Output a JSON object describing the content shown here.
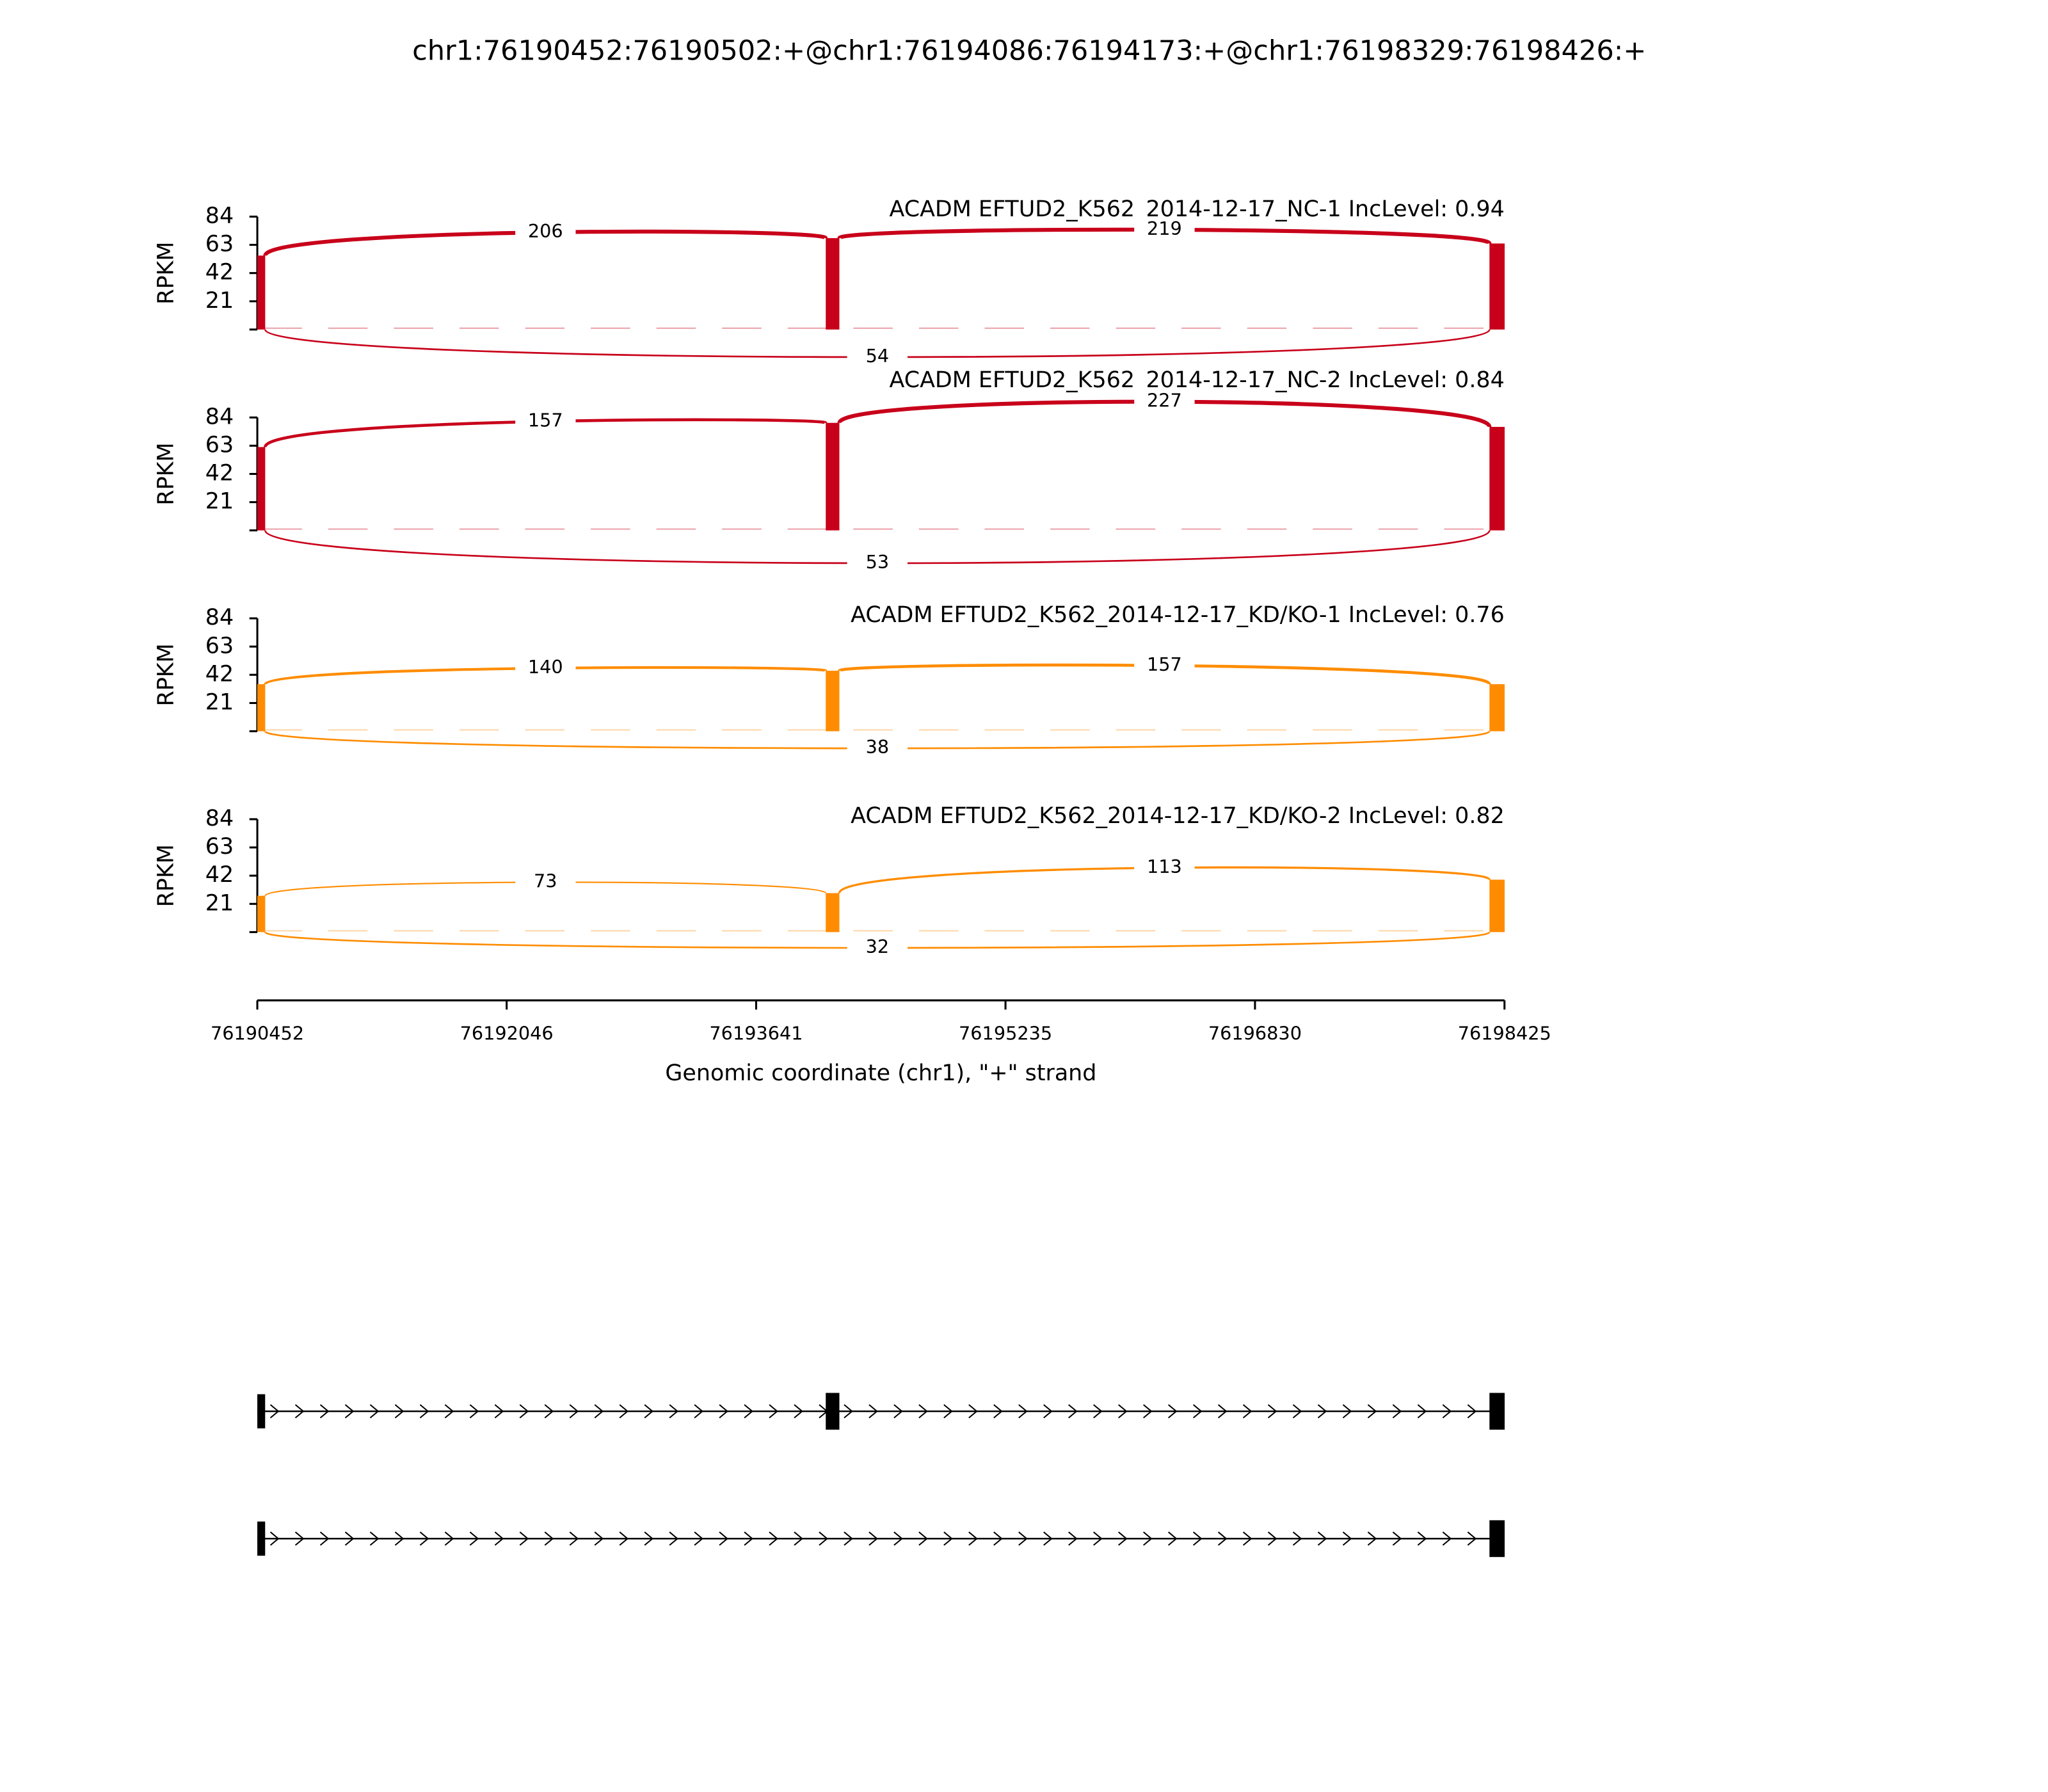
{
  "chart_data": {
    "type": "sashimi",
    "title": "chr1:76190452:76190502:+@chr1:76194086:76194173:+@chr1:76198329:76198426:+",
    "xlabel": "Genomic coordinate (chr1), \"+\" strand",
    "xlim": [
      76190452,
      76198425
    ],
    "xticks": [
      76190452,
      76192046,
      76193641,
      76195235,
      76196830,
      76198425
    ],
    "ylabel": "RPKM",
    "ylim": [
      0,
      84
    ],
    "yticks": [
      21,
      42,
      63,
      84
    ],
    "exons": [
      [
        76190452,
        76190502
      ],
      [
        76194086,
        76194173
      ],
      [
        76198329,
        76198426
      ]
    ],
    "tracks": [
      {
        "name": "ACADM EFTUD2_K562_2014-12-17_NC-1 IncLevel: 0.94",
        "color": "#c8001a",
        "coverage": [
          55,
          68,
          64
        ],
        "junctions": [
          206,
          219,
          54
        ]
      },
      {
        "name": "ACADM EFTUD2_K562_2014-12-17_NC-2 IncLevel: 0.84",
        "color": "#c8001a",
        "coverage": [
          62,
          80,
          77
        ],
        "junctions": [
          157,
          227,
          53
        ]
      },
      {
        "name": "ACADM EFTUD2_K562_2014-12-17_KD/KO-1 IncLevel: 0.76",
        "color": "#ff8c00",
        "coverage": [
          35,
          45,
          35
        ],
        "junctions": [
          140,
          157,
          38
        ]
      },
      {
        "name": "ACADM EFTUD2_K562_2014-12-17_KD/KO-2 IncLevel: 0.82",
        "color": "#ff8c00",
        "coverage": [
          27,
          29,
          39
        ],
        "junctions": [
          73,
          113,
          32
        ]
      }
    ],
    "isoforms": [
      [
        [
          76190452,
          76190502
        ],
        [
          76194086,
          76194173
        ],
        [
          76198329,
          76198426
        ]
      ],
      [
        [
          76190452,
          76190502
        ],
        [
          76198329,
          76198426
        ]
      ]
    ]
  }
}
